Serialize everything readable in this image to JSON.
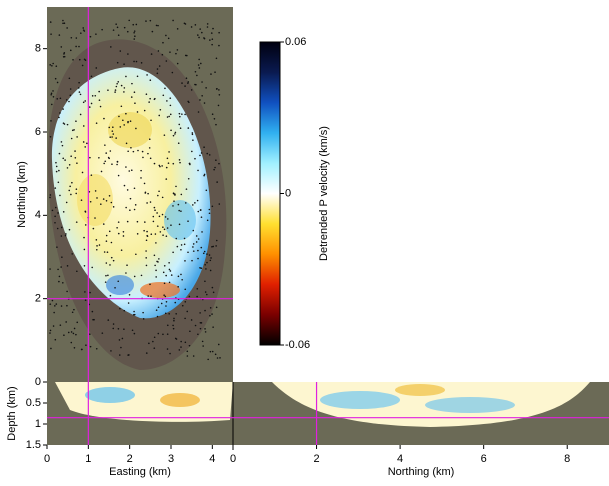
{
  "chart_data": [
    {
      "type": "heatmap",
      "ylabel": "Northing (km)",
      "xlim": [
        0,
        4.5
      ],
      "ylim": [
        0,
        9
      ],
      "yticks": [
        2,
        4,
        6,
        8
      ],
      "crosshair_x": 1,
      "crosshair_y": 2,
      "crosshair_color": "#e020e0"
    },
    {
      "type": "heatmap",
      "xlabel": "Easting (km)",
      "ylabel": "Depth (km)",
      "xlim": [
        0,
        4.5
      ],
      "ylim": [
        0,
        1.5
      ],
      "y_inverted": true,
      "xticks": [
        0,
        1,
        2,
        3,
        4
      ],
      "yticks": [
        0,
        0.5,
        1,
        1.5
      ],
      "crosshair_x": 1,
      "crosshair_y": 0.85,
      "crosshair_color": "#e020e0"
    },
    {
      "type": "heatmap",
      "xlabel": "Northing (km)",
      "xlim": [
        0,
        9
      ],
      "ylim": [
        0,
        1.5
      ],
      "y_inverted": true,
      "xticks": [
        0,
        2,
        4,
        6,
        8
      ],
      "crosshair_x": 2,
      "crosshair_y": 0.85,
      "crosshair_color": "#e020e0"
    },
    {
      "type": "colorbar",
      "label": "Detrended P velocity (km/s)",
      "clim": [
        -0.06,
        0.06
      ],
      "cticks": [
        -0.06,
        0,
        0.06
      ],
      "colormap": [
        "#000000",
        "#7a0000",
        "#e02000",
        "#ff9000",
        "#ffe030",
        "#ffffff",
        "#a0f0ff",
        "#30b0f0",
        "#1050c0",
        "#0a1a50",
        "#000010"
      ]
    }
  ]
}
